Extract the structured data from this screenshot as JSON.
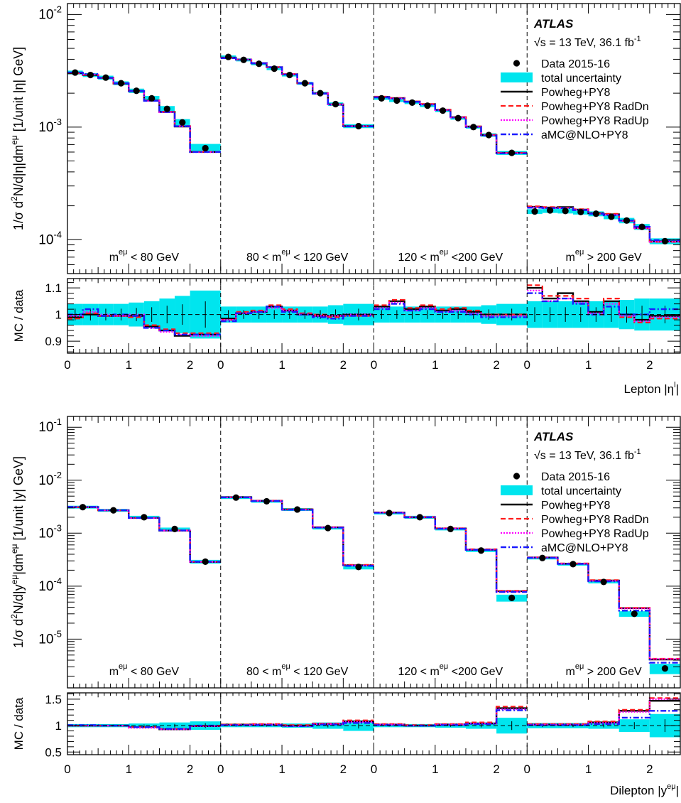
{
  "colors": {
    "data": "#000000",
    "uncertainty": "#00e5ee",
    "powheg": "#000000",
    "raddn": "#ff1a1a",
    "radup": "#ff00ff",
    "amcnlo": "#1a1aff"
  },
  "legend": {
    "atlas": "ATLAS",
    "energy_sqrt": "√s = 13 TeV, 36.1 fb",
    "energy_exp": "-1",
    "entries": [
      {
        "key": "data",
        "label": "Data 2015-16"
      },
      {
        "key": "uncertainty",
        "label": "total uncertainty"
      },
      {
        "key": "powheg",
        "label": "Powheg+PY8"
      },
      {
        "key": "raddn",
        "label": "Powheg+PY8 RadDn"
      },
      {
        "key": "radup",
        "label": "Powheg+PY8 RadUp"
      },
      {
        "key": "amcnlo",
        "label": "aMC@NLO+PY8"
      }
    ]
  },
  "region_labels": [
    {
      "pre": "m",
      "sup": "eμ",
      "post": " < 80 GeV"
    },
    {
      "pre": "80 < m",
      "sup": "eμ",
      "post": " < 120 GeV"
    },
    {
      "pre": "120 < m",
      "sup": "eμ",
      "post": " <200 GeV"
    },
    {
      "pre": "m",
      "sup": "eμ",
      "post": " > 200 GeV"
    }
  ],
  "chart_data": [
    {
      "type": "line",
      "panel": "top",
      "step_histogram": true,
      "ylabel_main": "1/σ d²N/d|η|dm^eμ [1/unit |η| GeV]",
      "ylabel_main_parts": {
        "a": "1/σ d",
        "b": "2",
        "c": "N/d|η|dm",
        "d": "eμ",
        "e": " [1/unit |η| GeV]"
      },
      "ylabel_ratio": "MC / data",
      "xlabel": "Lepton |η^l|",
      "xlabel_parts": {
        "pre": "Lepton |η",
        "sup": "l",
        "post": "|"
      },
      "yscale": "log",
      "ylim": [
        5e-05,
        0.0125
      ],
      "ytick_labels": [
        {
          "base": "10",
          "exp": "-2",
          "value": 0.01
        },
        {
          "base": "10",
          "exp": "-3",
          "value": 0.001
        },
        {
          "base": "10",
          "exp": "-4",
          "value": 0.0001
        }
      ],
      "ratio_ylim": [
        0.855,
        1.135
      ],
      "ratio_ticks": [
        {
          "label": "0.9",
          "value": 0.9
        },
        {
          "label": "1",
          "value": 1.0
        },
        {
          "label": "1.1",
          "value": 1.1
        }
      ],
      "x_ticks": [
        "0",
        "1",
        "2"
      ],
      "region_xmax": 2.5,
      "bin_edges": [
        0,
        0.25,
        0.5,
        0.75,
        1.0,
        1.25,
        1.5,
        1.75,
        2.0,
        2.5
      ],
      "regions": [
        {
          "data": [
            0.00305,
            0.0029,
            0.00275,
            0.00245,
            0.0021,
            0.0018,
            0.00145,
            0.0011,
            0.00065
          ],
          "unc": [
            0.04,
            0.04,
            0.04,
            0.04,
            0.045,
            0.05,
            0.06,
            0.07,
            0.09
          ],
          "series": [
            {
              "name": "Powheg+PY8",
              "ratio": [
                0.99,
                1.0,
                0.995,
                0.995,
                0.995,
                0.955,
                0.94,
                0.92,
                0.925
              ]
            },
            {
              "name": "Powheg+PY8 RadDn",
              "ratio": [
                0.985,
                1.005,
                0.995,
                0.995,
                0.99,
                0.96,
                0.945,
                0.93,
                0.93
              ]
            },
            {
              "name": "Powheg+PY8 RadUp",
              "ratio": [
                0.995,
                1.01,
                1.0,
                0.995,
                1.0,
                0.95,
                0.935,
                0.925,
                0.92
              ]
            },
            {
              "name": "aMC@NLO+PY8",
              "ratio": [
                1.0,
                1.02,
                0.995,
                1.0,
                0.995,
                0.95,
                0.94,
                0.925,
                0.925
              ]
            }
          ]
        },
        {
          "data": [
            0.0042,
            0.00395,
            0.00365,
            0.0033,
            0.0029,
            0.00245,
            0.002,
            0.0016,
            0.00102
          ],
          "unc": [
            0.03,
            0.03,
            0.03,
            0.03,
            0.03,
            0.03,
            0.03,
            0.035,
            0.04
          ],
          "series": [
            {
              "name": "Powheg+PY8",
              "ratio": [
                0.985,
                1.005,
                1.01,
                1.03,
                1.015,
                1.0,
                0.995,
                0.995,
                1.0
              ]
            },
            {
              "name": "Powheg+PY8 RadDn",
              "ratio": [
                0.98,
                1.01,
                1.015,
                1.035,
                1.02,
                1.005,
                1.0,
                0.99,
                0.995
              ]
            },
            {
              "name": "Powheg+PY8 RadUp",
              "ratio": [
                0.98,
                1.005,
                1.01,
                1.025,
                1.015,
                1.0,
                0.995,
                0.995,
                1.0
              ]
            },
            {
              "name": "aMC@NLO+PY8",
              "ratio": [
                0.975,
                1.005,
                1.01,
                1.03,
                1.01,
                1.0,
                0.99,
                0.985,
                0.995
              ]
            }
          ]
        },
        {
          "data": [
            0.0018,
            0.00172,
            0.00165,
            0.00155,
            0.0014,
            0.0012,
            0.001,
            0.00085,
            0.00059
          ],
          "unc": [
            0.03,
            0.03,
            0.03,
            0.03,
            0.03,
            0.03,
            0.03,
            0.035,
            0.04
          ],
          "series": [
            {
              "name": "Powheg+PY8",
              "ratio": [
                1.03,
                1.05,
                1.02,
                1.03,
                1.015,
                1.02,
                1.01,
                1.0,
                1.0
              ]
            },
            {
              "name": "Powheg+PY8 RadDn",
              "ratio": [
                1.035,
                1.055,
                1.025,
                1.035,
                1.02,
                1.025,
                1.015,
                1.0,
                1.0
              ]
            },
            {
              "name": "Powheg+PY8 RadUp",
              "ratio": [
                1.025,
                1.045,
                1.015,
                1.025,
                1.01,
                1.015,
                1.005,
                0.995,
                0.995
              ]
            },
            {
              "name": "aMC@NLO+PY8",
              "ratio": [
                1.02,
                1.04,
                1.015,
                1.02,
                1.01,
                1.01,
                1.0,
                0.99,
                0.99
              ]
            }
          ]
        },
        {
          "data": [
            0.000178,
            0.000182,
            0.00018,
            0.000176,
            0.00017,
            0.00016,
            0.000148,
            0.00013,
            9.7e-05
          ],
          "unc": [
            0.05,
            0.05,
            0.05,
            0.05,
            0.05,
            0.05,
            0.055,
            0.06,
            0.06
          ],
          "series": [
            {
              "name": "Powheg+PY8",
              "ratio": [
                1.1,
                1.06,
                1.08,
                1.05,
                1.01,
                1.05,
                1.0,
                0.98,
                0.995
              ]
            },
            {
              "name": "Powheg+PY8 RadDn",
              "ratio": [
                1.11,
                1.07,
                1.07,
                1.06,
                1.0,
                1.06,
                0.99,
                0.97,
                0.985
              ]
            },
            {
              "name": "Powheg+PY8 RadUp",
              "ratio": [
                1.09,
                1.05,
                1.06,
                1.045,
                1.005,
                1.04,
                0.995,
                0.975,
                0.99
              ]
            },
            {
              "name": "aMC@NLO+PY8",
              "ratio": [
                1.08,
                1.05,
                1.06,
                1.04,
                1.0,
                1.03,
                1.0,
                1.0,
                1.02
              ]
            }
          ]
        }
      ]
    },
    {
      "type": "line",
      "panel": "bottom",
      "step_histogram": true,
      "ylabel_main": "1/σ d²N/d|y^eμ|dm^eμ [1/unit |y| GeV]",
      "ylabel_main_parts": {
        "a": "1/σ d",
        "b": "2",
        "c": "N/d|y",
        "d": "eμ",
        "e": "|dm",
        "f": "eμ",
        "g": " [1/unit |y| GeV]"
      },
      "ylabel_ratio": "MC / data",
      "xlabel": "Dilepton |y^eμ|",
      "xlabel_parts": {
        "pre": "Dilepton |y",
        "sup": "eμ",
        "post": "|"
      },
      "yscale": "log",
      "ylim": [
        1.2e-06,
        0.16
      ],
      "ytick_labels": [
        {
          "base": "10",
          "exp": "-1",
          "value": 0.1
        },
        {
          "base": "10",
          "exp": "-2",
          "value": 0.01
        },
        {
          "base": "10",
          "exp": "-3",
          "value": 0.001
        },
        {
          "base": "10",
          "exp": "-4",
          "value": 0.0001
        },
        {
          "base": "10",
          "exp": "-5",
          "value": 1e-05
        }
      ],
      "ratio_ylim": [
        0.45,
        1.62
      ],
      "ratio_ticks": [
        {
          "label": "0.5",
          "value": 0.5
        },
        {
          "label": "1",
          "value": 1.0
        },
        {
          "label": "1.5",
          "value": 1.5
        }
      ],
      "x_ticks": [
        "0",
        "1",
        "2"
      ],
      "region_xmax": 2.5,
      "bin_edges": [
        0,
        0.5,
        1.0,
        1.5,
        2.0,
        2.5
      ],
      "regions": [
        {
          "data": [
            0.0031,
            0.0027,
            0.002,
            0.0012,
            0.00029
          ],
          "unc": [
            0.03,
            0.03,
            0.04,
            0.06,
            0.08
          ],
          "series": [
            {
              "name": "Powheg+PY8",
              "ratio": [
                1.0,
                1.0,
                0.97,
                0.93,
                0.99
              ]
            },
            {
              "name": "Powheg+PY8 RadDn",
              "ratio": [
                1.0,
                1.0,
                0.97,
                0.94,
                1.0
              ]
            },
            {
              "name": "Powheg+PY8 RadUp",
              "ratio": [
                1.0,
                1.0,
                0.96,
                0.93,
                0.99
              ]
            },
            {
              "name": "aMC@NLO+PY8",
              "ratio": [
                1.01,
                1.0,
                0.97,
                0.94,
                1.0
              ]
            }
          ]
        },
        {
          "data": [
            0.0047,
            0.004,
            0.0028,
            0.00125,
            0.00023
          ],
          "unc": [
            0.03,
            0.03,
            0.04,
            0.06,
            0.1
          ],
          "series": [
            {
              "name": "Powheg+PY8",
              "ratio": [
                1.02,
                1.02,
                1.0,
                1.03,
                1.08
              ]
            },
            {
              "name": "Powheg+PY8 RadDn",
              "ratio": [
                1.02,
                1.03,
                1.01,
                1.04,
                1.1
              ]
            },
            {
              "name": "Powheg+PY8 RadUp",
              "ratio": [
                1.01,
                1.02,
                0.99,
                1.03,
                1.07
              ]
            },
            {
              "name": "aMC@NLO+PY8",
              "ratio": [
                1.01,
                1.01,
                0.99,
                1.02,
                1.05
              ]
            }
          ]
        },
        {
          "data": [
            0.0024,
            0.002,
            0.0012,
            0.00047,
            6e-05
          ],
          "unc": [
            0.03,
            0.03,
            0.04,
            0.06,
            0.15
          ],
          "series": [
            {
              "name": "Powheg+PY8",
              "ratio": [
                1.02,
                1.0,
                1.02,
                1.04,
                1.33
              ]
            },
            {
              "name": "Powheg+PY8 RadDn",
              "ratio": [
                1.03,
                1.01,
                1.03,
                1.06,
                1.36
              ]
            },
            {
              "name": "Powheg+PY8 RadUp",
              "ratio": [
                1.02,
                1.0,
                1.02,
                1.04,
                1.31
              ]
            },
            {
              "name": "aMC@NLO+PY8",
              "ratio": [
                1.01,
                1.0,
                1.01,
                1.03,
                1.29
              ]
            }
          ]
        },
        {
          "data": [
            0.00034,
            0.00026,
            0.00012,
            3e-05,
            2.8e-06
          ],
          "unc": [
            0.05,
            0.05,
            0.06,
            0.12,
            0.22
          ],
          "series": [
            {
              "name": "Powheg+PY8",
              "ratio": [
                1.02,
                1.02,
                1.06,
                1.28,
                1.47
              ]
            },
            {
              "name": "Powheg+PY8 RadDn",
              "ratio": [
                1.03,
                1.03,
                1.08,
                1.3,
                1.52
              ]
            },
            {
              "name": "Powheg+PY8 RadUp",
              "ratio": [
                1.02,
                1.02,
                1.05,
                1.26,
                1.5
              ]
            },
            {
              "name": "aMC@NLO+PY8",
              "ratio": [
                1.01,
                1.01,
                1.03,
                1.15,
                1.28
              ]
            }
          ]
        }
      ]
    }
  ]
}
